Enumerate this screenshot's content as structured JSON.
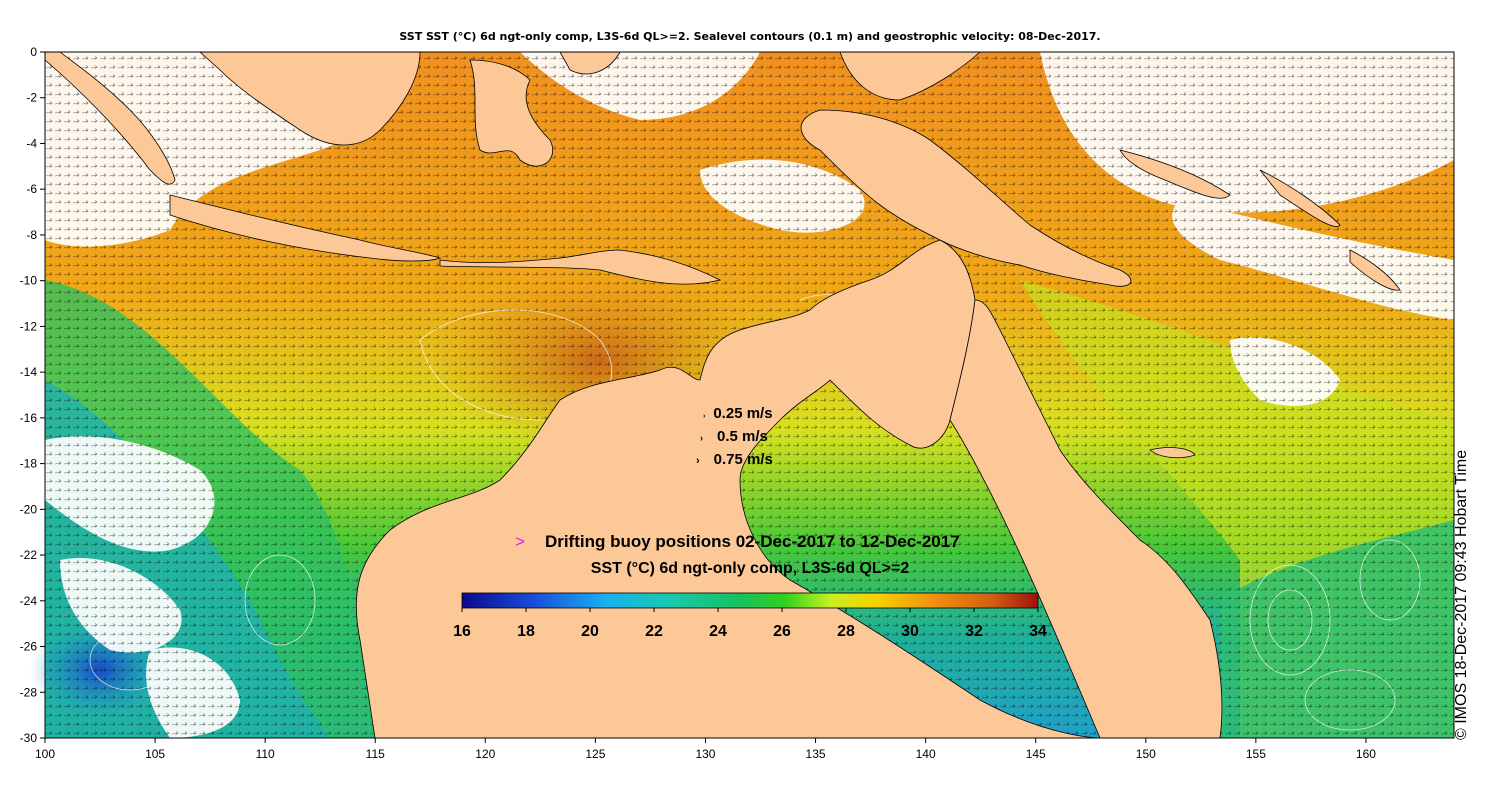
{
  "title": "SST SST (°C) 6d ngt-only comp, L3S-6d QL>=2. Sealevel contours (0.1 m) and geostrophic velocity: 08-Dec-2017.",
  "axes": {
    "x_ticks": [
      "100",
      "105",
      "110",
      "115",
      "120",
      "125",
      "130",
      "135",
      "140",
      "145",
      "150",
      "155",
      "160"
    ],
    "y_ticks": [
      "0",
      "-2",
      "-4",
      "-6",
      "-8",
      "-10",
      "-12",
      "-14",
      "-16",
      "-18",
      "-20",
      "-22",
      "-24",
      "-26",
      "-28",
      "-30"
    ],
    "lon_range": [
      100,
      164
    ],
    "lat_range": [
      -30,
      0
    ]
  },
  "velocity_legend": [
    {
      "label": "0.25 m/s",
      "speed": 0.25
    },
    {
      "label": "0.5 m/s",
      "speed": 0.5
    },
    {
      "label": "0.75 m/s",
      "speed": 0.75
    }
  ],
  "buoy_legend": {
    "marker": ">",
    "label": "Drifting buoy positions 02-Dec-2017 to 12-Dec-2017",
    "marker_color": "#e020e0"
  },
  "colorbar": {
    "title": "SST (°C) 6d ngt-only comp, L3S-6d QL>=2",
    "ticks": [
      "16",
      "18",
      "20",
      "22",
      "24",
      "26",
      "28",
      "30",
      "32",
      "34"
    ],
    "range": [
      16,
      34
    ]
  },
  "credit": "© IMOS 18-Dec-2017 09:43 Hobart Time",
  "colors": {
    "land": "#fcc898",
    "background": "#ffffff",
    "coast": "#000000"
  }
}
